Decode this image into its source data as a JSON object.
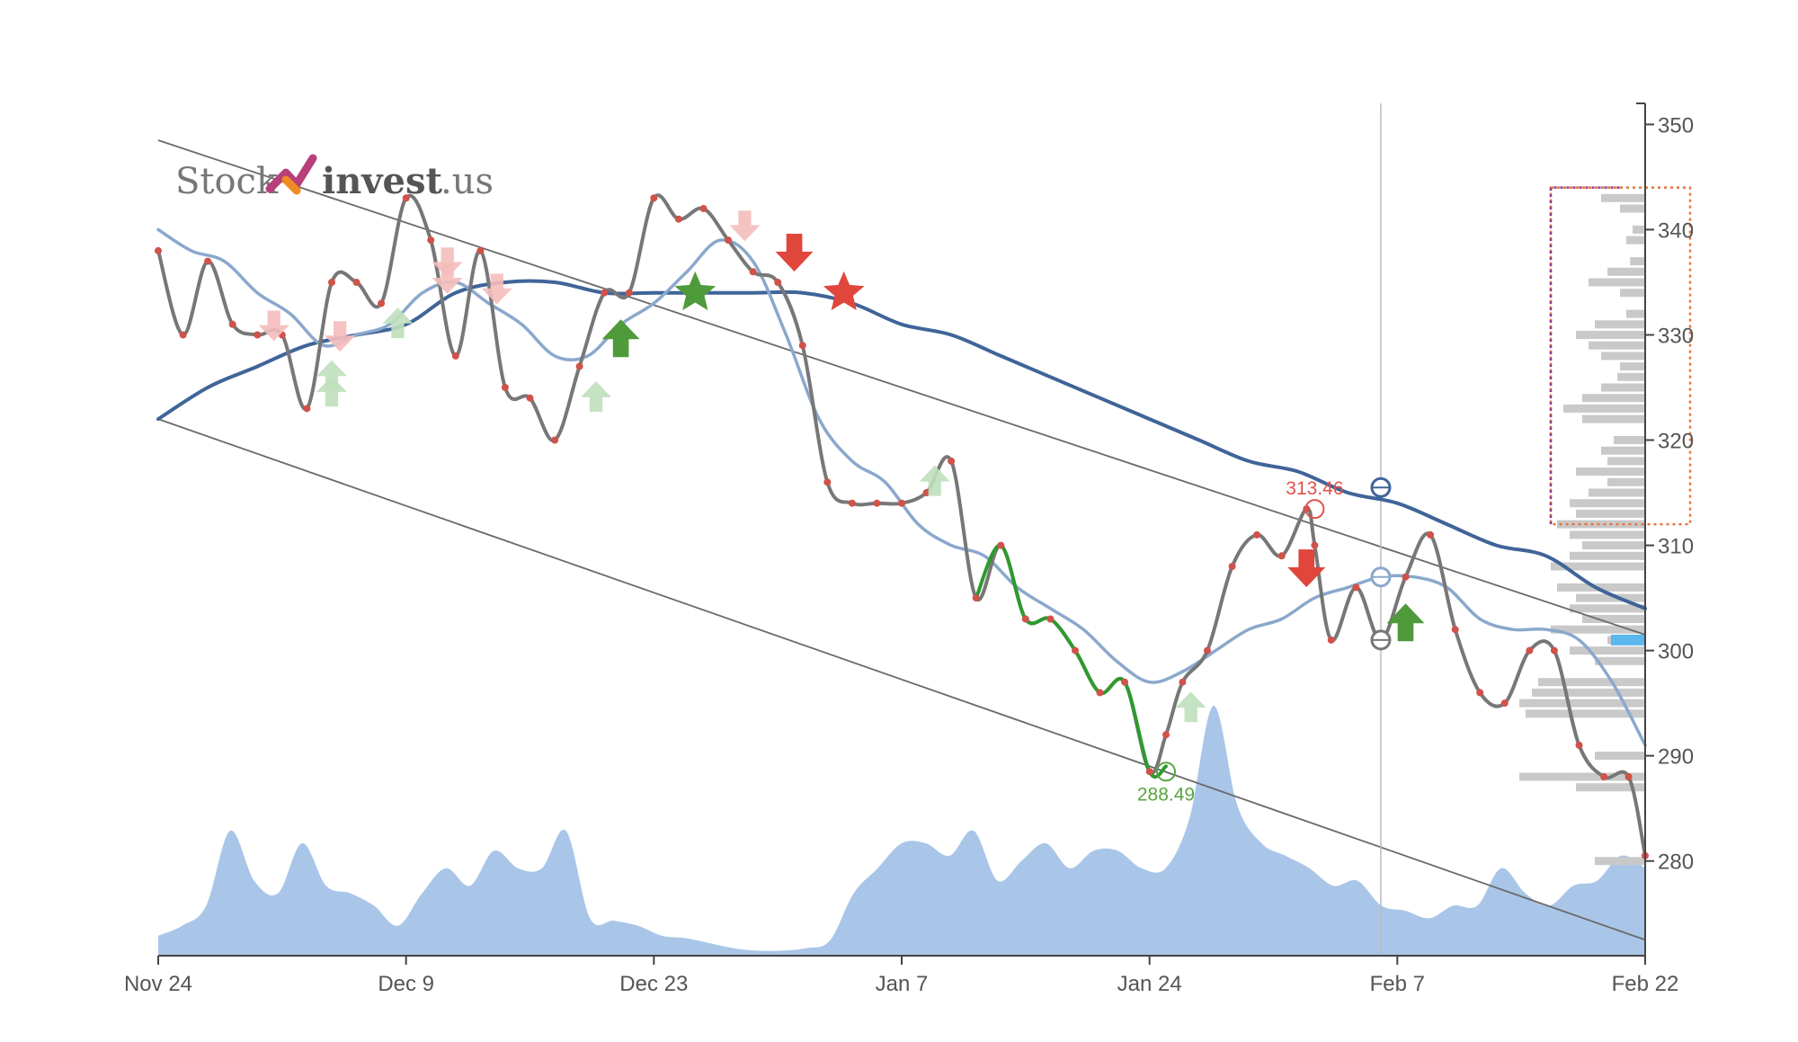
{
  "logo": {
    "part1": "Stock",
    "part2": "invest",
    "part3": ".us"
  },
  "chart_data": {
    "type": "line",
    "title": "",
    "xlabel": "",
    "ylabel": "",
    "x_tick_labels": [
      "Nov 24",
      "Dec 9",
      "Dec 23",
      "Jan 7",
      "Jan 24",
      "Feb 7",
      "Feb 22"
    ],
    "y_ticks": [
      280,
      290,
      300,
      310,
      320,
      330,
      340,
      350
    ],
    "ylim": [
      271,
      352
    ],
    "x_range_days": [
      0,
      90
    ],
    "grid": false,
    "legend": "none",
    "annotations": [
      {
        "label": "313.46",
        "x": 70,
        "y": 313.46,
        "color": "#e0524a",
        "type": "high"
      },
      {
        "label": "288.49",
        "x": 61,
        "y": 288.49,
        "color": "#5aa540",
        "type": "low"
      }
    ],
    "series": [
      {
        "color": "#777777",
        "x": [
          0,
          1.5,
          3,
          4.5,
          6,
          7.5,
          9,
          10.5,
          12,
          13.5,
          15,
          16.5,
          18,
          19.5,
          21,
          22.5,
          24,
          25.5,
          27,
          28.5,
          30,
          31.5,
          33,
          34.5,
          36,
          37.5,
          39,
          40.5,
          42,
          43.5,
          45,
          46.5,
          48,
          49.5,
          51,
          52.5,
          54,
          55.5,
          57,
          58.5,
          60,
          61,
          62,
          63.5,
          65,
          66.5,
          68,
          69.5,
          70,
          71,
          72.5,
          74,
          75.5,
          77,
          78.5,
          80,
          81.5,
          83,
          84.5,
          86,
          87.5,
          89,
          90
        ],
        "values": [
          338,
          330,
          337,
          331,
          330,
          330,
          323,
          335,
          335,
          333,
          343,
          339,
          328,
          338,
          325,
          324,
          320,
          327,
          334,
          334,
          343,
          341,
          342,
          339,
          336,
          335,
          329,
          316,
          314,
          314,
          314,
          315,
          318,
          305,
          310,
          303,
          303,
          300,
          296,
          297,
          288.5,
          292,
          297,
          300,
          308,
          311,
          309,
          313.46,
          310,
          301,
          306,
          301,
          307,
          311,
          302,
          296,
          295,
          300,
          300,
          291,
          288,
          288,
          280.5
        ]
      },
      {
        "color": "#2e9a2e",
        "x": [
          49.5,
          51,
          52.5,
          54,
          55.5,
          57,
          58.5,
          60,
          61
        ],
        "values": [
          305,
          310,
          303,
          303,
          300,
          296,
          297,
          288.5,
          289
        ]
      },
      {
        "color": "#8aa8cc",
        "x": [
          0,
          2,
          4,
          6,
          8,
          10,
          12,
          14,
          16,
          18,
          20,
          22,
          24,
          26,
          28,
          30,
          32,
          34,
          36,
          38,
          40,
          42,
          44,
          46,
          48,
          50,
          52,
          54,
          56,
          58,
          60,
          62,
          64,
          66,
          68,
          70,
          72,
          74,
          76,
          78,
          80,
          82,
          84,
          86,
          88,
          90
        ],
        "values": [
          340,
          338,
          337,
          334,
          332,
          329,
          330,
          331,
          334,
          335,
          333,
          331,
          328,
          328,
          331,
          333,
          336,
          339,
          337,
          330,
          322,
          318,
          316,
          312,
          310,
          309,
          306,
          304,
          302,
          299,
          297,
          298,
          300,
          302,
          303,
          305,
          306,
          307,
          307,
          306,
          303,
          302,
          302,
          301,
          297,
          291
        ]
      },
      {
        "color": "#3f6498",
        "x": [
          0,
          3,
          6,
          9,
          12,
          15,
          18,
          21,
          24,
          27,
          30,
          33,
          36,
          39,
          42,
          45,
          48,
          51,
          54,
          57,
          60,
          63,
          66,
          69,
          72,
          75,
          78,
          81,
          84,
          87,
          90
        ],
        "values": [
          322,
          325,
          327,
          329,
          330,
          331,
          334,
          335,
          335,
          334,
          334,
          334,
          334,
          334,
          333,
          331,
          330,
          328,
          326,
          324,
          322,
          320,
          318,
          317,
          315,
          314,
          312,
          310,
          309,
          306,
          304
        ]
      }
    ],
    "trend_lines": [
      {
        "x": [
          0,
          90
        ],
        "values": [
          348.5,
          301.5
        ]
      },
      {
        "x": [
          0,
          90
        ],
        "values": [
          322,
          272.5
        ]
      }
    ],
    "volume": {
      "color": "#a9c6e8",
      "values": [
        0.08,
        0.12,
        0.2,
        0.5,
        0.3,
        0.25,
        0.45,
        0.28,
        0.25,
        0.2,
        0.12,
        0.25,
        0.35,
        0.28,
        0.42,
        0.35,
        0.35,
        0.5,
        0.15,
        0.14,
        0.12,
        0.08,
        0.07,
        0.05,
        0.03,
        0.02,
        0.02,
        0.03,
        0.06,
        0.25,
        0.35,
        0.45,
        0.45,
        0.4,
        0.5,
        0.3,
        0.38,
        0.45,
        0.35,
        0.42,
        0.42,
        0.35,
        0.35,
        0.55,
        1.0,
        0.6,
        0.45,
        0.4,
        0.35,
        0.28,
        0.3,
        0.2,
        0.18,
        0.15,
        0.2,
        0.2,
        0.35,
        0.25,
        0.2,
        0.28,
        0.3,
        0.4,
        0.35
      ]
    },
    "volume_profile": {
      "color": "#c9c9c9",
      "highlight_color": "#5cb7ef",
      "highlight_level": 301,
      "price_range": [
        312,
        344
      ],
      "levels": [
        343,
        342,
        340,
        339,
        337,
        336,
        335,
        334,
        332,
        331,
        330,
        329,
        328,
        327,
        326,
        325,
        324,
        323,
        322,
        320,
        319,
        318,
        317,
        316,
        315,
        314,
        313,
        312,
        311,
        310,
        309,
        308,
        306,
        305,
        304,
        303,
        302,
        301,
        300,
        299,
        297,
        296,
        295,
        294,
        290,
        288,
        287,
        280
      ],
      "sizes": [
        0.35,
        0.2,
        0.1,
        0.15,
        0.12,
        0.3,
        0.45,
        0.2,
        0.15,
        0.4,
        0.55,
        0.45,
        0.35,
        0.2,
        0.22,
        0.35,
        0.5,
        0.65,
        0.5,
        0.25,
        0.35,
        0.3,
        0.55,
        0.3,
        0.45,
        0.6,
        0.55,
        0.7,
        0.6,
        0.5,
        0.6,
        0.75,
        0.7,
        0.55,
        0.6,
        0.5,
        0.75,
        0.3,
        0.6,
        0.4,
        0.85,
        0.9,
        1.0,
        0.95,
        0.4,
        1.0,
        0.55,
        0.4
      ]
    },
    "signals": [
      {
        "kind": "buy",
        "shape": "arrow",
        "x": 28,
        "y": 329.5
      },
      {
        "kind": "buy",
        "shape": "star",
        "x": 32.5,
        "y": 334
      },
      {
        "kind": "sell",
        "shape": "arrow",
        "x": 38.5,
        "y": 338
      },
      {
        "kind": "sell",
        "shape": "star",
        "x": 41.5,
        "y": 334
      },
      {
        "kind": "sell",
        "shape": "arrow",
        "x": 69.5,
        "y": 308
      },
      {
        "kind": "buy",
        "shape": "arrow",
        "x": 75.5,
        "y": 302.5
      },
      {
        "kind": "buy",
        "shape": "arrow-faint",
        "x": 10.5,
        "y": 326
      },
      {
        "kind": "buy",
        "shape": "arrow-faint",
        "x": 10.5,
        "y": 324.5
      },
      {
        "kind": "buy",
        "shape": "arrow-faint",
        "x": 14.5,
        "y": 331
      },
      {
        "kind": "buy",
        "shape": "arrow-faint",
        "x": 26.5,
        "y": 324
      },
      {
        "kind": "buy",
        "shape": "arrow-faint",
        "x": 47,
        "y": 316
      },
      {
        "kind": "buy",
        "shape": "arrow-faint",
        "x": 62.5,
        "y": 294.5
      },
      {
        "kind": "sell",
        "shape": "arrow-faint",
        "x": 7,
        "y": 331
      },
      {
        "kind": "sell",
        "shape": "arrow-faint",
        "x": 11,
        "y": 330
      },
      {
        "kind": "sell",
        "shape": "arrow-faint",
        "x": 17.5,
        "y": 337
      },
      {
        "kind": "sell",
        "shape": "arrow-faint",
        "x": 17.5,
        "y": 335.5
      },
      {
        "kind": "sell",
        "shape": "arrow-faint",
        "x": 20.5,
        "y": 334.5
      },
      {
        "kind": "sell",
        "shape": "arrow-faint",
        "x": 35.5,
        "y": 340.5
      }
    ],
    "markers": [
      {
        "x": 74,
        "y": 315.5,
        "color": "#3f6498"
      },
      {
        "x": 74,
        "y": 307,
        "color": "#8aa8cc"
      },
      {
        "x": 74,
        "y": 301,
        "color": "#777777"
      }
    ],
    "vertical_line_x": 74
  }
}
